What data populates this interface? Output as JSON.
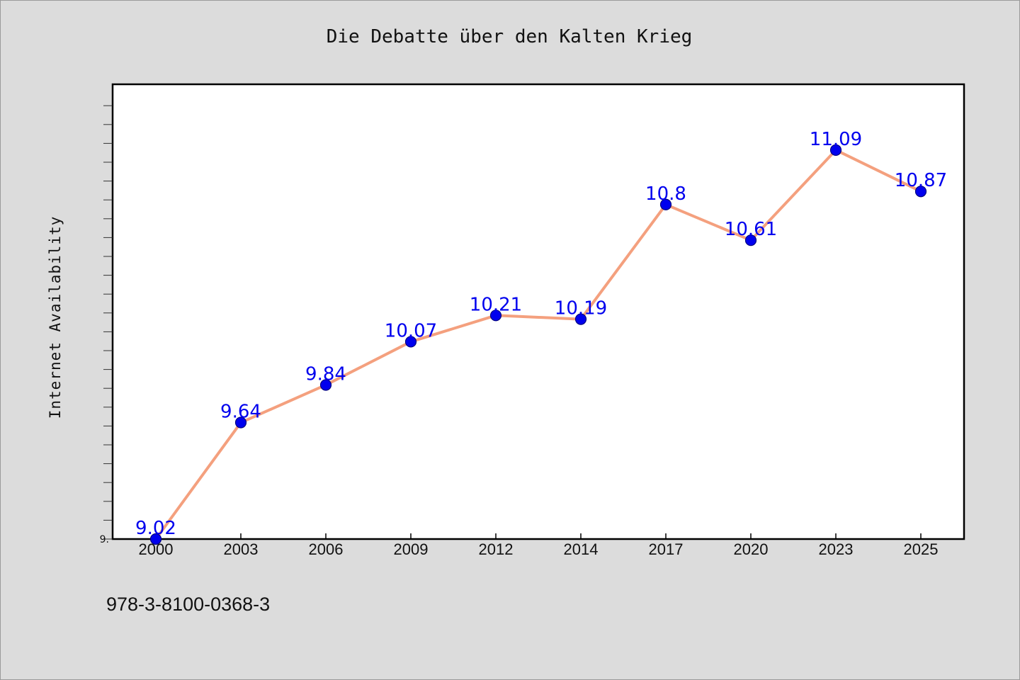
{
  "chart_data": {
    "type": "line",
    "title": "Die Debatte über den Kalten Krieg",
    "xlabel": "",
    "ylabel": "Internet Availability",
    "categories": [
      "2000",
      "2003",
      "2006",
      "2009",
      "2012",
      "2014",
      "2017",
      "2020",
      "2023",
      "2025"
    ],
    "series": [
      {
        "values": [
          9.02,
          9.64,
          9.84,
          10.07,
          10.21,
          10.19,
          10.8,
          10.61,
          11.09,
          10.87
        ]
      }
    ],
    "data_labels": [
      "9.02",
      "9.64",
      "9.84",
      "10.07",
      "10.21",
      "10.19",
      "10.8",
      "10.61",
      "11.09",
      "10.87"
    ],
    "y_tick_label": "9.",
    "ylim": [
      9.02,
      11.44
    ],
    "grid": false,
    "legend": "none",
    "colors": {
      "line": "#f4a07e",
      "marker": "#0000ee",
      "marker_edge": "#000080",
      "label": "#0000ee",
      "page_bg": "#dcdcdc",
      "plot_bg": "#ffffff"
    }
  },
  "footer": {
    "isbn": "978-3-8100-0368-3"
  }
}
